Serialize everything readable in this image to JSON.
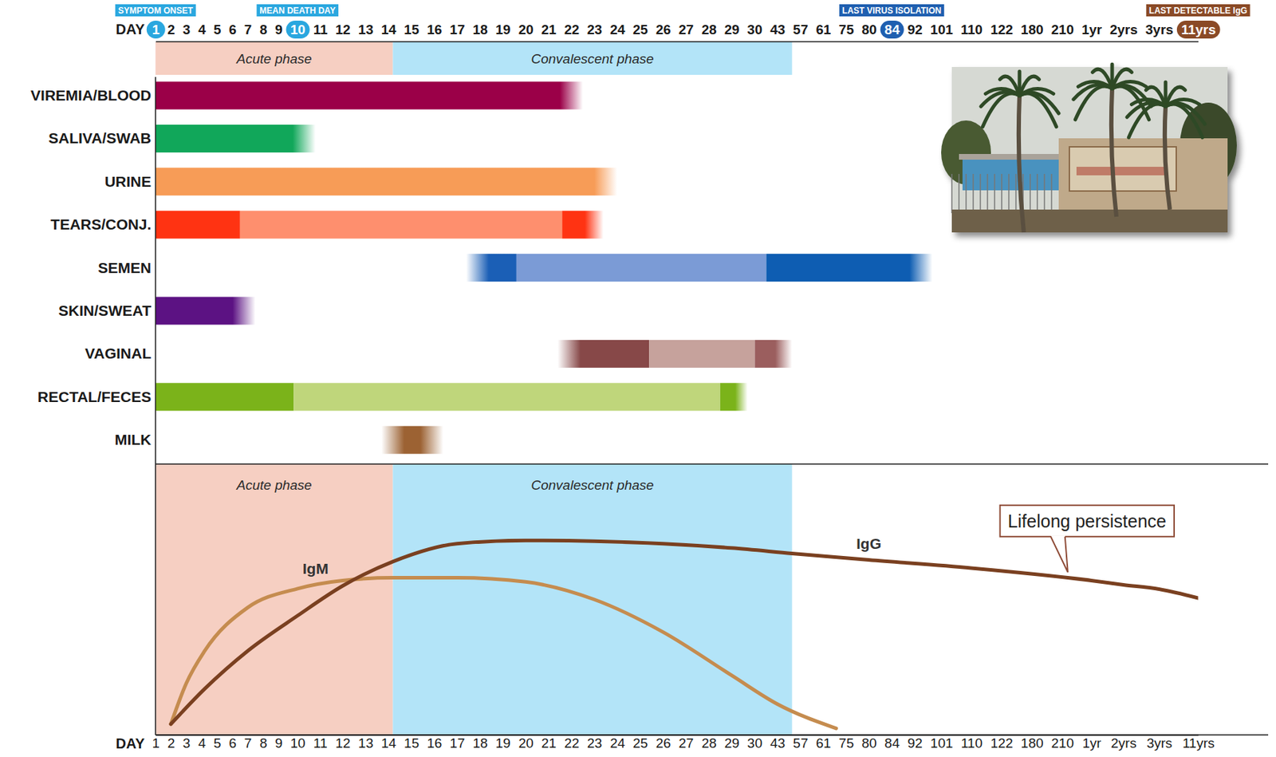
{
  "chart_data": {
    "type": "timeline",
    "x_label": "DAY",
    "xlim": [
      1,
      4015
    ],
    "xticks": [
      1,
      2,
      3,
      4,
      5,
      6,
      7,
      8,
      9,
      10,
      11,
      12,
      13,
      14,
      15,
      16,
      17,
      18,
      19,
      20,
      21,
      22,
      23,
      24,
      25,
      26,
      27,
      28,
      29,
      30,
      43,
      57,
      61,
      75,
      80,
      84,
      92,
      101,
      110,
      122,
      180,
      210,
      {
        "value": 365,
        "label": "1yr"
      },
      {
        "value": 730,
        "label": "2yrs"
      },
      {
        "value": 1095,
        "label": "3yrs"
      },
      {
        "value": 4015,
        "label": "11yrs"
      }
    ],
    "markers": [
      {
        "label": "SYMPTOM ONSET",
        "x": 1,
        "color": "#2aa7df"
      },
      {
        "label": "MEAN DEATH DAY",
        "x": 10,
        "color": "#2aa7df"
      },
      {
        "label": "LAST VIRUS ISOLATION",
        "x": 84,
        "color": "#1f5fb0"
      },
      {
        "label": "LAST DETECTABLE IgG",
        "x": 4015,
        "color": "#8a4a26"
      }
    ],
    "phases": [
      {
        "label": "Acute phase",
        "start": 1,
        "end": 14.2,
        "color": "#f6cfc2"
      },
      {
        "label": "Convalescent phase",
        "start": 14.2,
        "end": 52,
        "color": "#b3e4f8"
      }
    ],
    "rows": [
      {
        "name": "VIREMIA/BLOOD",
        "segments": [
          {
            "start": 1,
            "end": 22.5,
            "color": "#9b0048"
          }
        ]
      },
      {
        "name": "SALIVA/SWAB",
        "segments": [
          {
            "start": 1,
            "end": 10.8,
            "color": "#11a75a"
          }
        ]
      },
      {
        "name": "URINE",
        "segments": [
          {
            "start": 1,
            "end": 24,
            "color": "#f79c57"
          }
        ]
      },
      {
        "name": "TEARS/CONJ.",
        "segments": [
          {
            "start": 1,
            "end": 6.5,
            "color": "#ff3312"
          },
          {
            "start": 6.5,
            "end": 21.6,
            "color": "#fe8f6e"
          },
          {
            "start": 21.6,
            "end": 23.4,
            "color": "#ff3312"
          }
        ]
      },
      {
        "name": "SEMEN",
        "segments": [
          {
            "start": 17.4,
            "end": 19.6,
            "color": "#1b5fb6"
          },
          {
            "start": 19.6,
            "end": 36.7,
            "color": "#7b9bd6"
          },
          {
            "start": 36.7,
            "end": 98,
            "color": "#0e5db2"
          }
        ]
      },
      {
        "name": "SKIN/SWEAT",
        "segments": [
          {
            "start": 1,
            "end": 7.5,
            "color": "#5c1283"
          }
        ]
      },
      {
        "name": "VAGINAL",
        "segments": [
          {
            "start": 21.4,
            "end": 25.4,
            "color": "#874848"
          },
          {
            "start": 25.4,
            "end": 30.2,
            "color": "#c6a29c"
          },
          {
            "start": 30.2,
            "end": 52,
            "color": "#9b5e5e"
          }
        ]
      },
      {
        "name": "RECTAL/FECES",
        "segments": [
          {
            "start": 1,
            "end": 9.8,
            "color": "#7bb31a"
          },
          {
            "start": 9.8,
            "end": 28.5,
            "color": "#bfd67b"
          },
          {
            "start": 28.5,
            "end": 29.7,
            "color": "#7bb31a"
          }
        ]
      },
      {
        "name": "MILK",
        "segments": [
          {
            "start": 13.7,
            "end": 16.4,
            "color": "#9c6233"
          }
        ]
      }
    ],
    "ylim": [
      0,
      100
    ],
    "tick_labels": "x",
    "series": [
      {
        "name": "IgM",
        "type": "line",
        "color": "#c58c4f",
        "x": [
          2,
          3,
          4.2,
          7,
          10,
          12,
          14.2,
          17,
          20,
          23,
          26,
          29,
          43,
          69
        ],
        "values": [
          4,
          19,
          31,
          47,
          54,
          57,
          58,
          58,
          56.5,
          50,
          38,
          22,
          11.4,
          2.4
        ]
      },
      {
        "name": "IgG",
        "type": "line",
        "color": "#7a4020",
        "x": [
          2,
          4.2,
          7,
          10,
          12,
          14.2,
          17,
          20,
          23,
          26,
          29,
          52,
          80,
          110,
          365,
          730,
          1095,
          4015
        ],
        "values": [
          4,
          17,
          31,
          44,
          55,
          64,
          70.6,
          71.8,
          71.5,
          70.6,
          69,
          67,
          64.6,
          61.6,
          57,
          55.4,
          53.8,
          50.5
        ]
      }
    ],
    "annotations": [
      {
        "text": "Lifelong persistence",
        "x": 240,
        "y": 59
      }
    ]
  }
}
